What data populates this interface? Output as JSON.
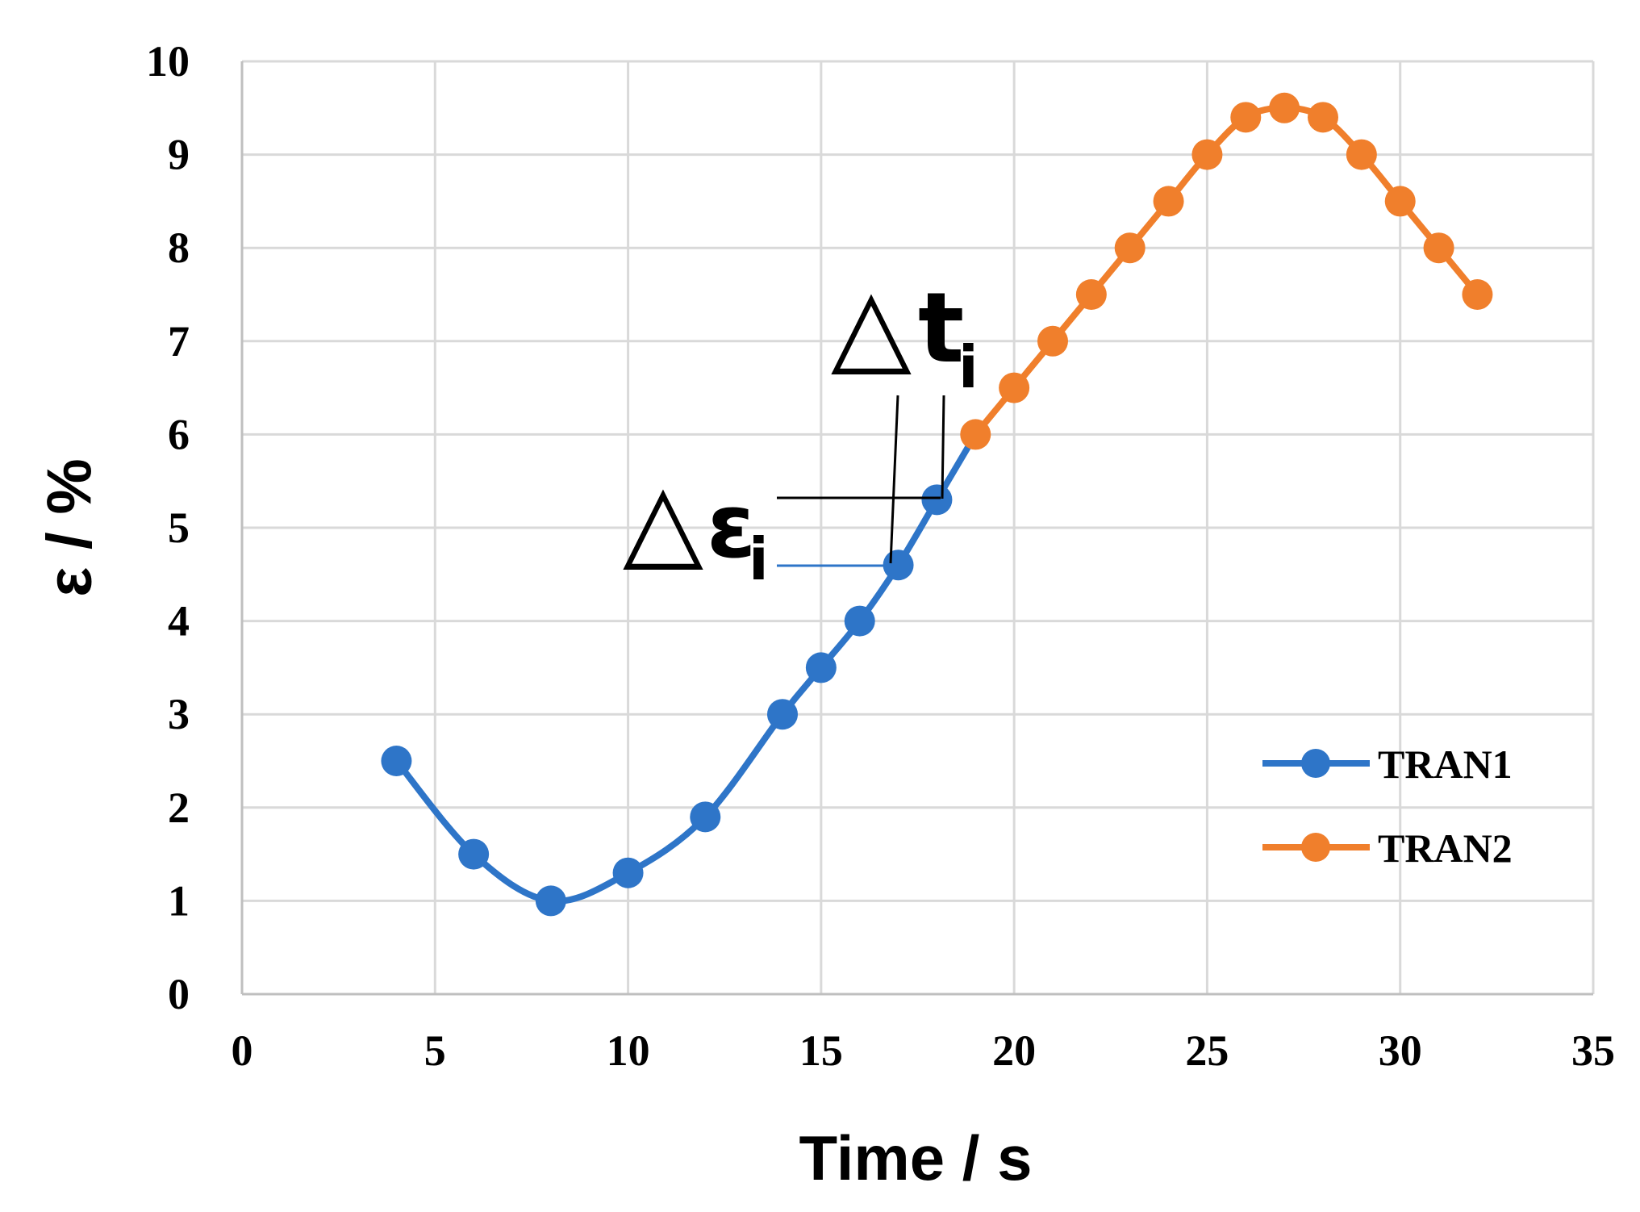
{
  "chart_data": {
    "type": "line",
    "title": "",
    "xlabel": "Time / s",
    "ylabel": "ε / %",
    "xlim": [
      0,
      35
    ],
    "ylim": [
      0,
      10
    ],
    "xticks": [
      0,
      5,
      10,
      15,
      20,
      25,
      30,
      35
    ],
    "yticks": [
      0,
      1,
      2,
      3,
      4,
      5,
      6,
      7,
      8,
      9,
      10
    ],
    "grid": true,
    "legend_position": "right",
    "series": [
      {
        "name": "TRAN1",
        "color": "#2e75c8",
        "x": [
          4,
          6,
          8,
          10,
          12,
          14,
          15,
          16,
          17,
          18,
          19
        ],
        "y": [
          2.5,
          1.5,
          1.0,
          1.3,
          1.9,
          3.0,
          3.5,
          4.0,
          4.6,
          5.3,
          6.0
        ]
      },
      {
        "name": "TRAN2",
        "color": "#f07f2c",
        "x": [
          19,
          20,
          21,
          22,
          23,
          24,
          25,
          26,
          27,
          28,
          29,
          30,
          31,
          32
        ],
        "y": [
          6.0,
          6.5,
          7.0,
          7.5,
          8.0,
          8.5,
          9.0,
          9.4,
          9.5,
          9.4,
          9.0,
          8.5,
          8.0,
          7.5
        ]
      }
    ],
    "annotations": {
      "delta_t_symbol": "△",
      "delta_t_base": "t",
      "delta_t_sub": "i",
      "delta_eps_symbol": "△",
      "delta_eps_base": "ε",
      "delta_eps_sub": "i"
    }
  }
}
